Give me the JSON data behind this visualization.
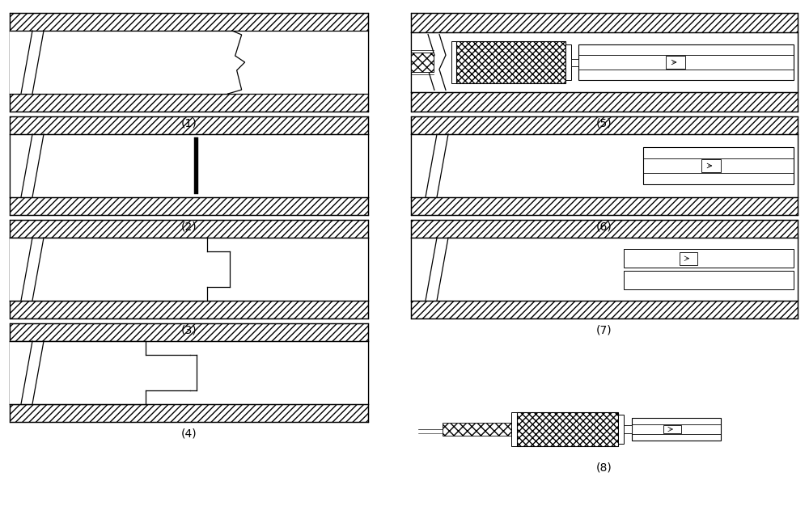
{
  "background_color": "#ffffff",
  "line_color": "#000000",
  "figure_size": [
    10.0,
    6.26
  ],
  "dpi": 100,
  "labels": [
    "(1)",
    "(2)",
    "(3)",
    "(4)",
    "(5)",
    "(6)",
    "(7)",
    "(8)"
  ]
}
